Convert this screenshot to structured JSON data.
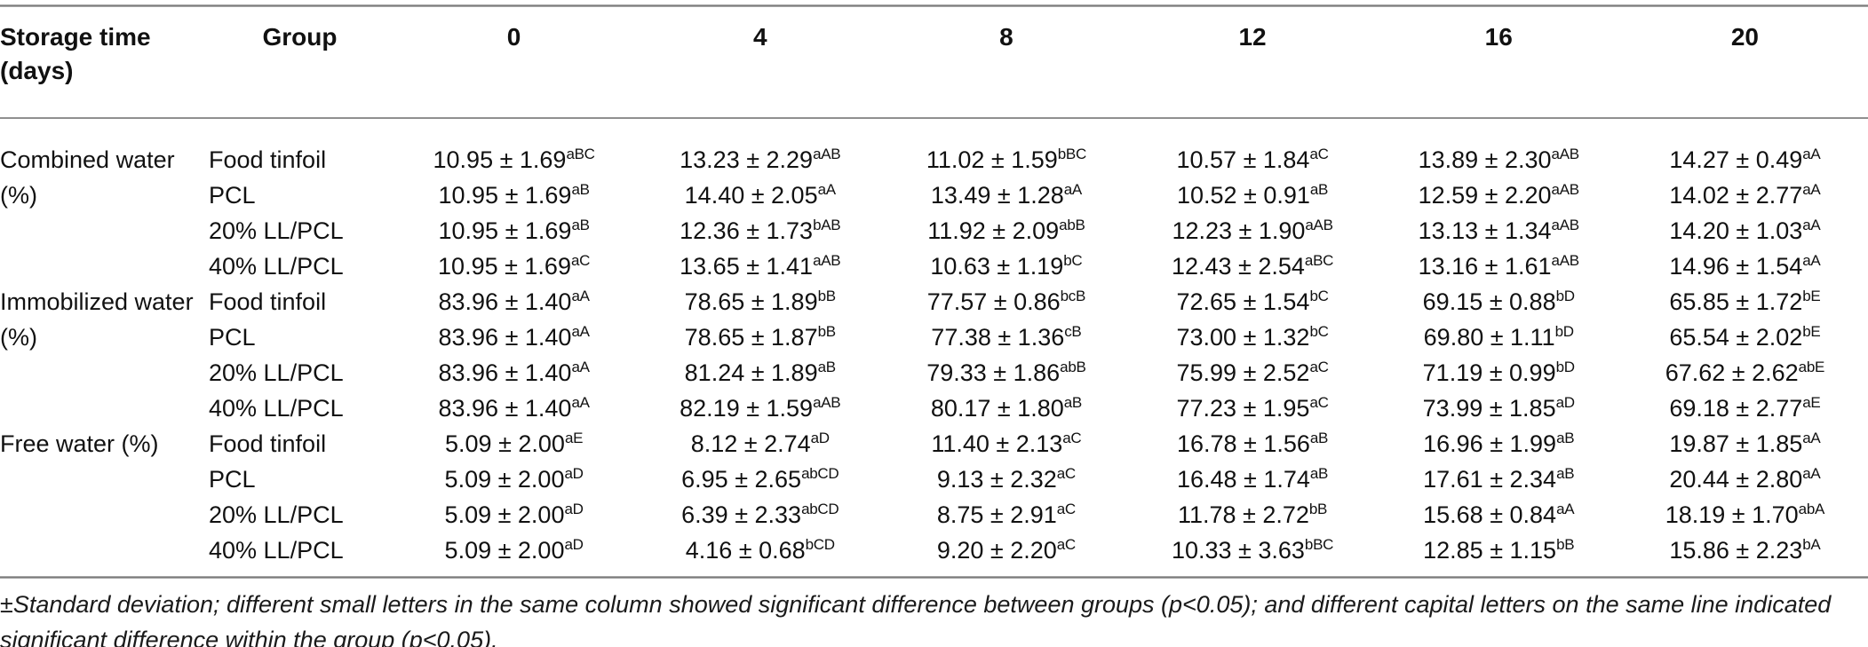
{
  "colors": {
    "background": "#ffffff",
    "text": "#111111",
    "rule": "#8f8f8f"
  },
  "header": {
    "row_label_column": "Storage time (days)",
    "group_column": "Group",
    "times": [
      "0",
      "4",
      "8",
      "12",
      "16",
      "20"
    ]
  },
  "sections": [
    {
      "label": "Combined water (%)",
      "rows": [
        {
          "group": "Food tinfoil",
          "values": [
            {
              "v": "10.95 ± 1.69",
              "s": "aBC"
            },
            {
              "v": "13.23 ± 2.29",
              "s": "aAB"
            },
            {
              "v": "11.02 ± 1.59",
              "s": "bBC"
            },
            {
              "v": "10.57 ± 1.84",
              "s": "aC"
            },
            {
              "v": "13.89 ± 2.30",
              "s": "aAB"
            },
            {
              "v": "14.27 ± 0.49",
              "s": "aA"
            }
          ]
        },
        {
          "group": "PCL",
          "values": [
            {
              "v": "10.95 ± 1.69",
              "s": "aB"
            },
            {
              "v": "14.40 ± 2.05",
              "s": "aA"
            },
            {
              "v": "13.49 ± 1.28",
              "s": "aA"
            },
            {
              "v": "10.52 ± 0.91",
              "s": "aB"
            },
            {
              "v": "12.59 ± 2.20",
              "s": "aAB"
            },
            {
              "v": "14.02 ± 2.77",
              "s": "aA"
            }
          ]
        },
        {
          "group": "20% LL/PCL",
          "values": [
            {
              "v": "10.95 ± 1.69",
              "s": "aB"
            },
            {
              "v": "12.36 ± 1.73",
              "s": "bAB"
            },
            {
              "v": "11.92 ± 2.09",
              "s": "abB"
            },
            {
              "v": "12.23 ± 1.90",
              "s": "aAB"
            },
            {
              "v": "13.13 ± 1.34",
              "s": "aAB"
            },
            {
              "v": "14.20 ± 1.03",
              "s": "aA"
            }
          ]
        },
        {
          "group": "40% LL/PCL",
          "values": [
            {
              "v": "10.95 ± 1.69",
              "s": "aC"
            },
            {
              "v": "13.65 ± 1.41",
              "s": "aAB"
            },
            {
              "v": "10.63 ± 1.19",
              "s": "bC"
            },
            {
              "v": "12.43 ± 2.54",
              "s": "aBC"
            },
            {
              "v": "13.16 ± 1.61",
              "s": "aAB"
            },
            {
              "v": "14.96 ± 1.54",
              "s": "aA"
            }
          ]
        }
      ]
    },
    {
      "label": "Immobilized water (%)",
      "rows": [
        {
          "group": "Food tinfoil",
          "values": [
            {
              "v": "83.96 ± 1.40",
              "s": "aA"
            },
            {
              "v": "78.65 ± 1.89",
              "s": "bB"
            },
            {
              "v": "77.57 ± 0.86",
              "s": "bcB"
            },
            {
              "v": "72.65 ± 1.54",
              "s": "bC"
            },
            {
              "v": "69.15 ± 0.88",
              "s": "bD"
            },
            {
              "v": "65.85 ± 1.72",
              "s": "bE"
            }
          ]
        },
        {
          "group": "PCL",
          "values": [
            {
              "v": "83.96 ± 1.40",
              "s": "aA"
            },
            {
              "v": "78.65 ± 1.87",
              "s": "bB"
            },
            {
              "v": "77.38 ± 1.36",
              "s": "cB"
            },
            {
              "v": "73.00 ± 1.32",
              "s": "bC"
            },
            {
              "v": "69.80 ± 1.11",
              "s": "bD"
            },
            {
              "v": "65.54 ± 2.02",
              "s": "bE"
            }
          ]
        },
        {
          "group": "20% LL/PCL",
          "values": [
            {
              "v": "83.96 ± 1.40",
              "s": "aA"
            },
            {
              "v": "81.24 ± 1.89",
              "s": "aB"
            },
            {
              "v": "79.33 ± 1.86",
              "s": "abB"
            },
            {
              "v": "75.99 ± 2.52",
              "s": "aC"
            },
            {
              "v": "71.19 ± 0.99",
              "s": "bD"
            },
            {
              "v": "67.62 ± 2.62",
              "s": "abE"
            }
          ]
        },
        {
          "group": "40% LL/PCL",
          "values": [
            {
              "v": "83.96 ± 1.40",
              "s": "aA"
            },
            {
              "v": "82.19 ± 1.59",
              "s": "aAB"
            },
            {
              "v": "80.17 ± 1.80",
              "s": "aB"
            },
            {
              "v": "77.23 ± 1.95",
              "s": "aC"
            },
            {
              "v": "73.99 ± 1.85",
              "s": "aD"
            },
            {
              "v": "69.18 ± 2.77",
              "s": "aE"
            }
          ]
        }
      ]
    },
    {
      "label": "Free water (%)",
      "rows": [
        {
          "group": "Food tinfoil",
          "values": [
            {
              "v": "5.09 ± 2.00",
              "s": "aE"
            },
            {
              "v": "8.12 ± 2.74",
              "s": "aD"
            },
            {
              "v": "11.40 ± 2.13",
              "s": "aC"
            },
            {
              "v": "16.78 ± 1.56",
              "s": "aB"
            },
            {
              "v": "16.96 ± 1.99",
              "s": "aB"
            },
            {
              "v": "19.87 ± 1.85",
              "s": "aA"
            }
          ]
        },
        {
          "group": "PCL",
          "values": [
            {
              "v": "5.09 ± 2.00",
              "s": "aD"
            },
            {
              "v": "6.95 ± 2.65",
              "s": "abCD"
            },
            {
              "v": "9.13 ± 2.32",
              "s": "aC"
            },
            {
              "v": "16.48 ± 1.74",
              "s": "aB"
            },
            {
              "v": "17.61 ± 2.34",
              "s": "aB"
            },
            {
              "v": "20.44 ± 2.80",
              "s": "aA"
            }
          ]
        },
        {
          "group": "20% LL/PCL",
          "values": [
            {
              "v": "5.09 ± 2.00",
              "s": "aD"
            },
            {
              "v": "6.39 ± 2.33",
              "s": "abCD"
            },
            {
              "v": "8.75 ± 2.91",
              "s": "aC"
            },
            {
              "v": "11.78 ± 2.72",
              "s": "bB"
            },
            {
              "v": "15.68 ± 0.84",
              "s": "aA"
            },
            {
              "v": "18.19 ± 1.70",
              "s": "abA"
            }
          ]
        },
        {
          "group": "40% LL/PCL",
          "values": [
            {
              "v": "5.09 ± 2.00",
              "s": "aD"
            },
            {
              "v": "4.16 ± 0.68",
              "s": "bCD"
            },
            {
              "v": "9.20 ± 2.20",
              "s": "aC"
            },
            {
              "v": "10.33 ± 3.63",
              "s": "bBC"
            },
            {
              "v": "12.85 ± 1.15",
              "s": "bB"
            },
            {
              "v": "15.86 ± 2.23",
              "s": "bA"
            }
          ]
        }
      ]
    }
  ],
  "footnote": "±Standard deviation; different small letters in the same column showed significant difference between groups (p<0.05); and different capital letters on the same line indicated significant difference within the group (p<0.05)."
}
